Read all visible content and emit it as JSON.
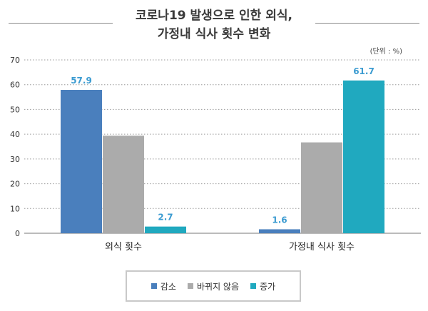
{
  "header": {
    "title_line1": "코로나19 발생으로 인한 외식,",
    "title_line2": "가정내 식사 횟수 변화"
  },
  "unit_label": "(단위 : %)",
  "chart_data": {
    "type": "bar",
    "title": "코로나19 발생으로 인한 외식, 가정내 식사 횟수 변화",
    "categories": [
      "외식 횟수",
      "가정내 식사 횟수"
    ],
    "series": [
      {
        "name": "감소",
        "color": "#4a7fbd",
        "values": [
          57.9,
          1.6
        ],
        "labels": [
          "57.9",
          "1.6"
        ]
      },
      {
        "name": "바뀌지 않음",
        "color": "#ababab",
        "values": [
          39.4,
          36.7
        ],
        "labels": [
          "",
          ""
        ]
      },
      {
        "name": "증가",
        "color": "#20a9bf",
        "values": [
          2.7,
          61.7
        ],
        "labels": [
          "2.7",
          "61.7"
        ]
      }
    ],
    "ylim": [
      0,
      70
    ],
    "yticks": [
      0,
      10,
      20,
      30,
      40,
      50,
      60,
      70
    ],
    "grid": true,
    "legend_position": "bottom",
    "label_color": "#3b9bd1"
  }
}
